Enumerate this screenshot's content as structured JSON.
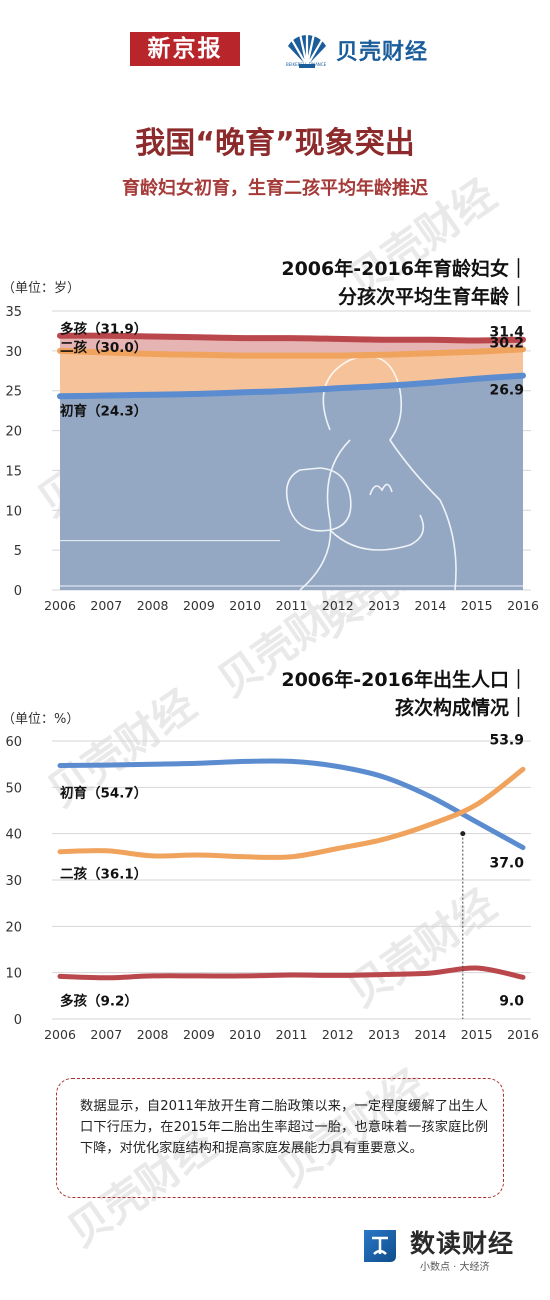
{
  "header": {
    "brand_left": "新京报",
    "brand_right": "贝壳财经",
    "brand_right_sub": "BEIKEBELL FINANCE"
  },
  "title": "我国“晚育”现象突出",
  "subtitle": "育龄妇女初育，生育二孩平均年龄推迟",
  "chart_data": [
    {
      "type": "area",
      "title_lines": [
        "2006年-2016年育龄妇女｜",
        "分孩次平均生育年龄｜"
      ],
      "unit": "（单位：岁）",
      "categories": [
        "2006",
        "2007",
        "2008",
        "2009",
        "2010",
        "2011",
        "2012",
        "2013",
        "2014",
        "2015",
        "2016"
      ],
      "ylim": [
        0,
        35
      ],
      "yticks": [
        0,
        5,
        10,
        15,
        20,
        25,
        30,
        35
      ],
      "series": [
        {
          "name": "多孩",
          "values": [
            31.9,
            31.9,
            31.8,
            31.7,
            31.6,
            31.6,
            31.5,
            31.4,
            31.4,
            31.3,
            31.4
          ],
          "color": "#b9474c",
          "fill": "#e6b4b2"
        },
        {
          "name": "二孩",
          "values": [
            30.0,
            29.8,
            29.6,
            29.5,
            29.4,
            29.4,
            29.4,
            29.5,
            29.7,
            29.9,
            30.2
          ],
          "color": "#f0a35c",
          "fill": "#f6c29a"
        },
        {
          "name": "初育",
          "values": [
            24.3,
            24.4,
            24.5,
            24.6,
            24.8,
            25.0,
            25.3,
            25.6,
            26.0,
            26.5,
            26.9
          ],
          "color": "#5b8ccf",
          "fill": "#94a8c4"
        }
      ],
      "start_labels": [
        "多孩（31.9）",
        "二孩（30.0）",
        "初育（24.3）"
      ],
      "end_labels": [
        "31.4",
        "30.2",
        "26.9"
      ]
    },
    {
      "type": "line",
      "title_lines": [
        "2006年-2016年出生人口｜",
        "孩次构成情况｜"
      ],
      "unit": "（单位：%）",
      "categories": [
        "2006",
        "2007",
        "2008",
        "2009",
        "2010",
        "2011",
        "2012",
        "2013",
        "2014",
        "2015",
        "2016"
      ],
      "ylim": [
        0,
        60
      ],
      "yticks": [
        0,
        10,
        20,
        30,
        40,
        50,
        60
      ],
      "series": [
        {
          "name": "初育",
          "values": [
            54.7,
            54.8,
            55.0,
            55.2,
            55.6,
            55.6,
            54.5,
            52.2,
            48.0,
            42.5,
            37.0
          ],
          "color": "#5b8ccf"
        },
        {
          "name": "二孩",
          "values": [
            36.1,
            36.3,
            35.2,
            35.4,
            35.0,
            35.0,
            36.8,
            38.8,
            42.0,
            46.3,
            53.9
          ],
          "color": "#f0a35c"
        },
        {
          "name": "多孩",
          "values": [
            9.2,
            8.9,
            9.3,
            9.3,
            9.3,
            9.5,
            9.4,
            9.6,
            9.9,
            11.0,
            9.0
          ],
          "color": "#b9474c"
        }
      ],
      "start_labels": [
        "初育（54.7）",
        "二孩（36.1）",
        "多孩（9.2）"
      ],
      "end_labels": [
        "37.0",
        "53.9",
        "9.0"
      ],
      "crossover_x": 14.7,
      "crossover_y": 40
    }
  ],
  "note": "数据显示，自2011年放开生育二胎政策以来，一定程度缓解了出生人口下行压力，在2015年二胎出生率超过一胎，也意味着一孩家庭比例下降，对优化家庭结构和提高家庭发展能力具有重要意义。",
  "footer": {
    "name": "数读财经",
    "slogan": "小数点 · 大经济"
  },
  "watermark": "贝壳财经"
}
